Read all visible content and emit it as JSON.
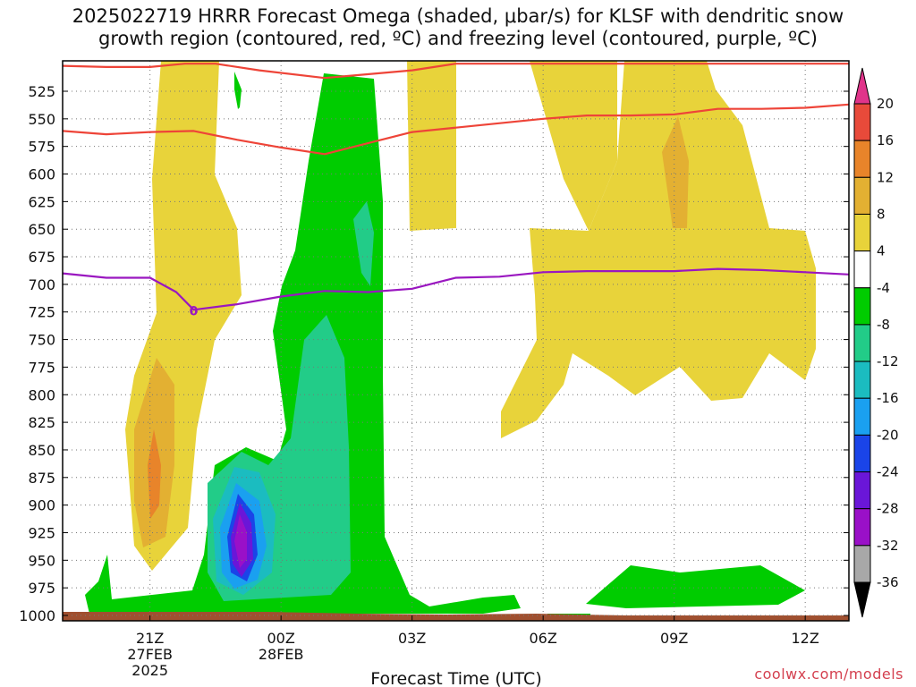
{
  "title_line1": "2025022719 HRRR Forecast Omega (shaded, μbar/s) for KLSF with dendritic snow",
  "title_line2": "growth region (contoured, red, ºC) and freezing level (contoured, purple, ºC)",
  "credit": "coolwx.com/models",
  "chart_data": {
    "type": "time-height cross section",
    "title": "2025022719 HRRR Forecast Omega (shaded, μbar/s) for KLSF with dendritic snow growth region (contoured, red, ºC) and freezing level (contoured, purple, ºC)",
    "xlabel": "Forecast Time (UTC)",
    "ylabel": "",
    "y_axis": {
      "unit": "hPa",
      "inverted": true,
      "range": [
        1000,
        500
      ],
      "ticks": [
        525,
        550,
        575,
        600,
        625,
        650,
        675,
        700,
        725,
        750,
        775,
        800,
        825,
        850,
        875,
        900,
        925,
        950,
        975,
        1000
      ]
    },
    "x_axis": {
      "range_hours": [
        19,
        37
      ],
      "ticks": [
        {
          "hour": 21,
          "label": "21Z",
          "sub1": "27FEB",
          "sub2": "2025"
        },
        {
          "hour": 24,
          "label": "00Z",
          "sub1": "28FEB",
          "sub2": ""
        },
        {
          "hour": 27,
          "label": "03Z",
          "sub1": "",
          "sub2": ""
        },
        {
          "hour": 30,
          "label": "06Z",
          "sub1": "",
          "sub2": ""
        },
        {
          "hour": 33,
          "label": "09Z",
          "sub1": "",
          "sub2": ""
        },
        {
          "hour": 36,
          "label": "12Z",
          "sub1": "",
          "sub2": ""
        }
      ]
    },
    "grid": "dotted",
    "colorbar": {
      "unit": "μbar/s",
      "levels": [
        {
          "label": "20",
          "color": "#e0348a"
        },
        {
          "label": "16",
          "color": "#e84a3a"
        },
        {
          "label": "12",
          "color": "#e8842a"
        },
        {
          "label": "8",
          "color": "#e3b032"
        },
        {
          "label": "4",
          "color": "#e8d33a"
        },
        {
          "label": "-4",
          "color": "#ffffff"
        },
        {
          "label": "-8",
          "color": "#00cc00"
        },
        {
          "label": "-12",
          "color": "#22cc88"
        },
        {
          "label": "-16",
          "color": "#1bbcc0"
        },
        {
          "label": "-20",
          "color": "#1aa0f0"
        },
        {
          "label": "-24",
          "color": "#1a44e8"
        },
        {
          "label": "-28",
          "color": "#6a16d8"
        },
        {
          "label": "-32",
          "color": "#9a10c8"
        },
        {
          "label": "-36",
          "color": "#a8a8a8"
        }
      ],
      "bottom_arrow_color": "#000000"
    },
    "contours": {
      "dendritic_upper_-18C": {
        "color": "#ee4438",
        "points": [
          [
            19,
            502
          ],
          [
            20,
            503
          ],
          [
            21,
            503
          ],
          [
            21.8,
            500
          ],
          [
            22.5,
            500
          ],
          [
            23.5,
            506
          ],
          [
            25,
            513
          ],
          [
            27,
            506
          ],
          [
            28,
            500
          ],
          [
            37,
            500
          ]
        ]
      },
      "dendritic_lower_-12C": {
        "color": "#ee4438",
        "points": [
          [
            19,
            561
          ],
          [
            20,
            564
          ],
          [
            21,
            562
          ],
          [
            22,
            561
          ],
          [
            23,
            569
          ],
          [
            24,
            576
          ],
          [
            25,
            582
          ],
          [
            27,
            562
          ],
          [
            28,
            558
          ],
          [
            30,
            550
          ],
          [
            31,
            547
          ],
          [
            32,
            547
          ],
          [
            33,
            546
          ],
          [
            34,
            541
          ],
          [
            35,
            541
          ],
          [
            36,
            540
          ],
          [
            37,
            537
          ]
        ]
      },
      "freezing_level_0C": {
        "color": "#9a17c0",
        "label": "0",
        "points": [
          [
            19,
            690
          ],
          [
            20,
            694
          ],
          [
            21,
            694
          ],
          [
            21.6,
            707
          ],
          [
            22,
            723
          ],
          [
            23,
            718
          ],
          [
            24,
            711
          ],
          [
            25,
            706
          ],
          [
            26,
            707
          ],
          [
            27,
            704
          ],
          [
            28,
            694
          ],
          [
            29,
            693
          ],
          [
            30,
            689
          ],
          [
            31,
            688
          ],
          [
            32,
            688
          ],
          [
            33,
            688
          ],
          [
            34,
            686
          ],
          [
            35,
            687
          ],
          [
            36,
            689
          ],
          [
            37,
            691
          ]
        ]
      }
    },
    "omega_regions": [
      {
        "level": "4 to 8",
        "color": "#e8d33a",
        "description": "upward-motion bands near 21Z-22Z and 03Z-12Z"
      },
      {
        "level": "8 to 12",
        "color": "#e3b032"
      },
      {
        "level": "12 to 16",
        "color": "#e8842a"
      },
      {
        "level": "-4 to -8",
        "color": "#00cc00",
        "description": "broad area 23Z-02Z and near-surface after 08Z"
      },
      {
        "level": "-28 to -32",
        "color": "#9a10c8",
        "description": "core near 23Z, ~900-925 hPa"
      }
    ],
    "terrain_color": "#a05030"
  }
}
